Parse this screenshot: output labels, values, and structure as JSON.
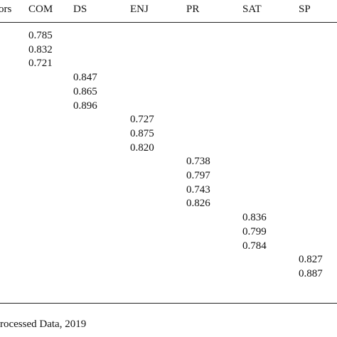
{
  "table": {
    "columns": [
      {
        "header": "ors",
        "values": []
      },
      {
        "header": "COM",
        "values": [
          "0.785",
          "0.832",
          "0.721"
        ]
      },
      {
        "header": "DS",
        "values": [
          "0.847",
          "0.865",
          "0.896"
        ]
      },
      {
        "header": "ENJ",
        "values": [
          "0.727",
          "0.875",
          "0.820"
        ]
      },
      {
        "header": "PR",
        "values": [
          "0.738",
          "0.797",
          "0.743",
          "0.826"
        ]
      },
      {
        "header": "SAT",
        "values": [
          "0.836",
          "0.799",
          "0.784"
        ]
      },
      {
        "header": "SP",
        "values": [
          "0.827",
          "0.887"
        ]
      }
    ]
  },
  "footer": "rocessed Data, 2019"
}
